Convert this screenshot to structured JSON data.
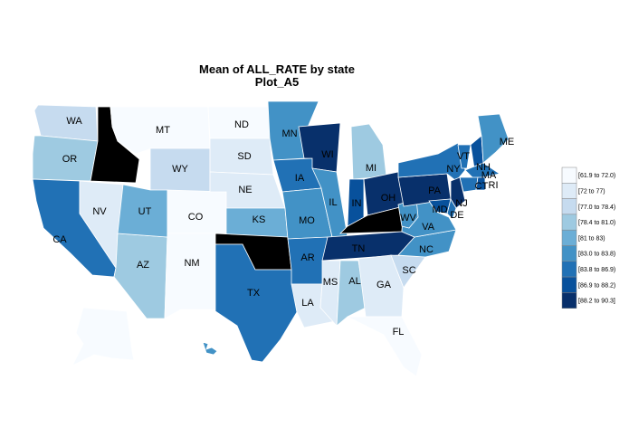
{
  "title": "Mean of ALL_RATE by state",
  "subtitle": "Plot_A5",
  "colors": {
    "missing": "#000000",
    "bins": [
      "#f7fbff",
      "#deebf7",
      "#c6dbef",
      "#9ecae1",
      "#6baed6",
      "#4292c6",
      "#2171b5",
      "#08519c",
      "#08306b"
    ]
  },
  "legend": {
    "items": [
      "[61.9 to 72.0)",
      "[72 to 77)",
      "[77.0 to 78.4)",
      "[78.4 to 81.0)",
      "[81 to 83)",
      "[83.0 to 83.8)",
      "[83.8 to 86.9)",
      "[86.9 to 88.2)",
      "[88.2 to 90.3]"
    ]
  },
  "chart_data": {
    "type": "choropleth",
    "title": "Mean of ALL_RATE by state",
    "subtitle": "Plot_A5",
    "legend_position": "right",
    "states": [
      {
        "code": "WA",
        "bin": 2
      },
      {
        "code": "OR",
        "bin": 3
      },
      {
        "code": "CA",
        "bin": 6
      },
      {
        "code": "ID",
        "bin": null
      },
      {
        "code": "NV",
        "bin": 1
      },
      {
        "code": "AZ",
        "bin": 3
      },
      {
        "code": "MT",
        "bin": 0
      },
      {
        "code": "WY",
        "bin": 2
      },
      {
        "code": "UT",
        "bin": 4
      },
      {
        "code": "CO",
        "bin": 0
      },
      {
        "code": "NM",
        "bin": 0
      },
      {
        "code": "ND",
        "bin": 0
      },
      {
        "code": "SD",
        "bin": 1
      },
      {
        "code": "NE",
        "bin": 1
      },
      {
        "code": "KS",
        "bin": 4
      },
      {
        "code": "OK",
        "bin": null
      },
      {
        "code": "TX",
        "bin": 6
      },
      {
        "code": "MN",
        "bin": 5
      },
      {
        "code": "IA",
        "bin": 6
      },
      {
        "code": "MO",
        "bin": 5
      },
      {
        "code": "AR",
        "bin": 6
      },
      {
        "code": "LA",
        "bin": 1
      },
      {
        "code": "WI",
        "bin": 8
      },
      {
        "code": "IL",
        "bin": 5
      },
      {
        "code": "MI",
        "bin": 3
      },
      {
        "code": "IN",
        "bin": 7
      },
      {
        "code": "OH",
        "bin": 8
      },
      {
        "code": "KY",
        "bin": null
      },
      {
        "code": "TN",
        "bin": 8
      },
      {
        "code": "MS",
        "bin": 1
      },
      {
        "code": "AL",
        "bin": 3
      },
      {
        "code": "GA",
        "bin": 1
      },
      {
        "code": "FL",
        "bin": 0
      },
      {
        "code": "SC",
        "bin": 2
      },
      {
        "code": "NC",
        "bin": 5
      },
      {
        "code": "VA",
        "bin": 5
      },
      {
        "code": "WV",
        "bin": 5
      },
      {
        "code": "PA",
        "bin": 8
      },
      {
        "code": "NY",
        "bin": 6
      },
      {
        "code": "VT",
        "bin": 6
      },
      {
        "code": "NH",
        "bin": 7
      },
      {
        "code": "ME",
        "bin": 5
      },
      {
        "code": "MA",
        "bin": 6
      },
      {
        "code": "CT",
        "bin": 6
      },
      {
        "code": "RI",
        "bin": 7
      },
      {
        "code": "NJ",
        "bin": 8
      },
      {
        "code": "DE",
        "bin": 6
      },
      {
        "code": "MD",
        "bin": 7
      },
      {
        "code": "AK",
        "bin": 0
      },
      {
        "code": "HI",
        "bin": 5
      }
    ]
  }
}
